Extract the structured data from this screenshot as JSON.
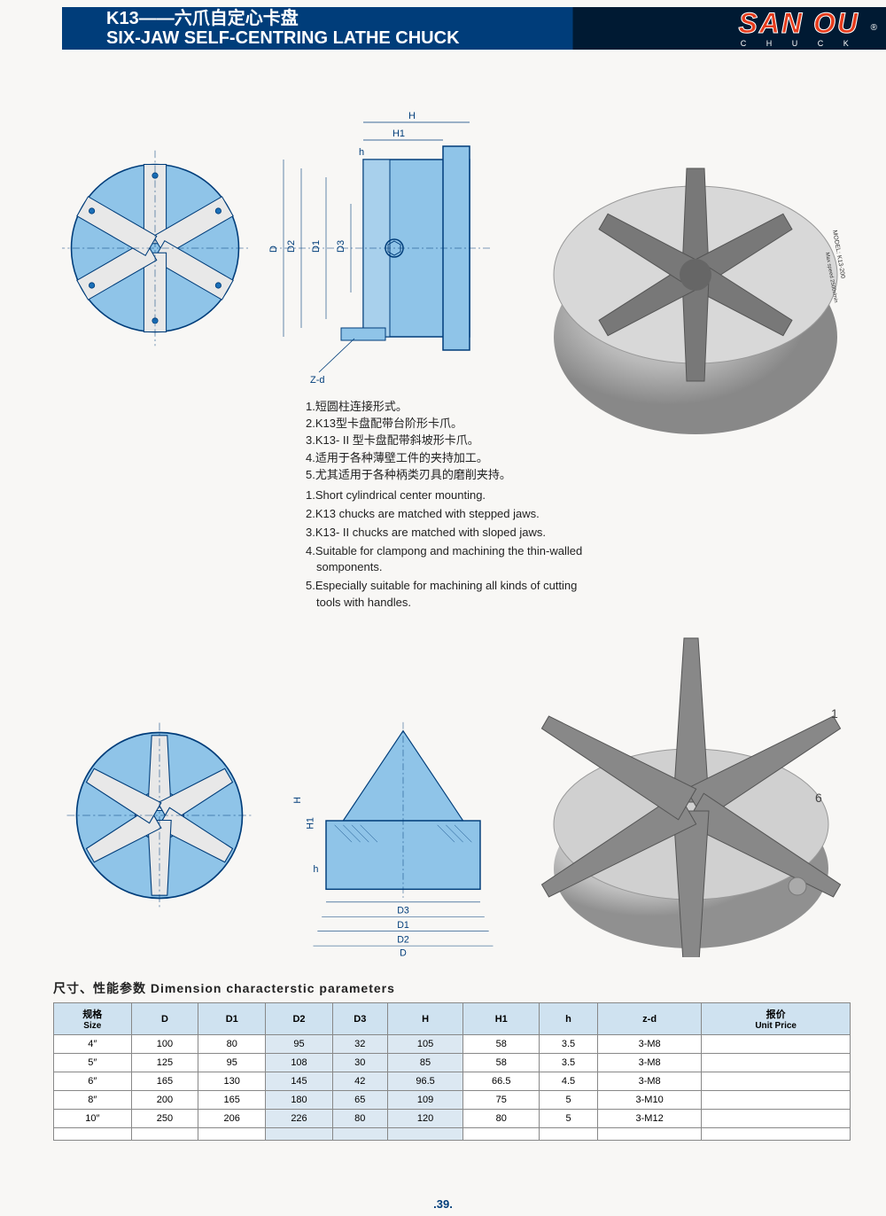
{
  "header": {
    "model": "K13——六爪自定心卡盘",
    "title_en": "SIX-JAW SELF-CENTRING LATHE CHUCK",
    "brand": "SAN OU",
    "brand_sub": "C H U C K",
    "trademark": "®"
  },
  "diagram_top": {
    "labels": {
      "H": "H",
      "H1": "H1",
      "h": "h",
      "D": "D",
      "D1": "D1",
      "D2": "D2",
      "D3": "D3",
      "Zd": "Z-d"
    },
    "colors": {
      "fill": "#8fc4e8",
      "stroke": "#003d7a",
      "accent": "#1a6fb8"
    }
  },
  "diagram_bottom": {
    "labels": {
      "H": "H",
      "H1": "H1",
      "h": "h",
      "D": "D",
      "D1": "D1",
      "D2": "D2",
      "D3": "D3"
    }
  },
  "notes_cn": [
    "1.短圆柱连接形式。",
    "2.K13型卡盘配带台阶形卡爪。",
    "3.K13- II 型卡盘配带斜坡形卡爪。",
    "4.适用于各种薄壁工件的夹持加工。",
    "5.尤其适用于各种柄类刃具的磨削夹持。"
  ],
  "notes_en": [
    "1.Short cylindrical center mounting.",
    "2.K13 chucks are matched with stepped jaws.",
    "3.K13- II  chucks are matched with sloped jaws.",
    "4.Suitable for clampong and machining the thin-walled somponents.",
    "5.Especially suitable for machining all kinds of cutting tools with handles."
  ],
  "photo1": {
    "model_label": "MODEL: K13-200",
    "speed_label": "Max speed 2500r/min",
    "brand": "SAN OU"
  },
  "photo2": {
    "jaw_1": "1",
    "jaw_6": "6"
  },
  "table": {
    "title": "尺寸、性能参数   Dimension characterstic parameters",
    "columns": [
      {
        "cn": "规格",
        "en": "Size"
      },
      {
        "cn": "",
        "en": "D"
      },
      {
        "cn": "",
        "en": "D1"
      },
      {
        "cn": "",
        "en": "D2"
      },
      {
        "cn": "",
        "en": "D3"
      },
      {
        "cn": "",
        "en": "H"
      },
      {
        "cn": "",
        "en": "H1"
      },
      {
        "cn": "",
        "en": "h"
      },
      {
        "cn": "",
        "en": "z-d"
      },
      {
        "cn": "报价",
        "en": "Unit Price"
      }
    ],
    "alt_cols": [
      3,
      4,
      5
    ],
    "rows": [
      [
        "4″",
        "100",
        "80",
        "95",
        "32",
        "105",
        "58",
        "3.5",
        "3-M8",
        ""
      ],
      [
        "5″",
        "125",
        "95",
        "108",
        "30",
        "85",
        "58",
        "3.5",
        "3-M8",
        ""
      ],
      [
        "6″",
        "165",
        "130",
        "145",
        "42",
        "96.5",
        "66.5",
        "4.5",
        "3-M8",
        ""
      ],
      [
        "8″",
        "200",
        "165",
        "180",
        "65",
        "109",
        "75",
        "5",
        "3-M10",
        ""
      ],
      [
        "10″",
        "250",
        "206",
        "226",
        "80",
        "120",
        "80",
        "5",
        "3-M12",
        ""
      ]
    ],
    "styling": {
      "header_bg": "#cfe2f0",
      "alt_bg": "#dce8f2",
      "border": "#888888",
      "font_size": 11
    }
  },
  "page_number": ".39."
}
